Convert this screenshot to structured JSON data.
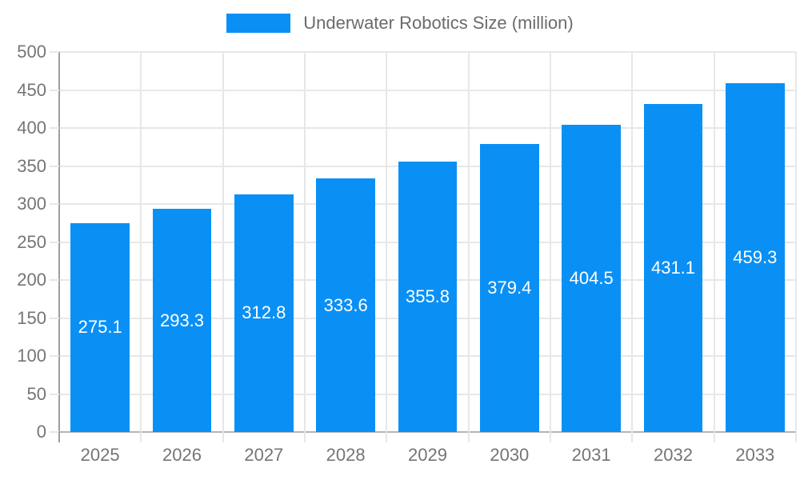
{
  "legend": {
    "label": "Underwater Robotics Size (million)"
  },
  "chart_data": {
    "type": "bar",
    "title": "Underwater Robotics Size (million)",
    "categories": [
      "2025",
      "2026",
      "2027",
      "2028",
      "2029",
      "2030",
      "2031",
      "2032",
      "2033"
    ],
    "series": [
      {
        "name": "Underwater Robotics Size (million)",
        "values": [
          275.1,
          293.3,
          312.8,
          333.6,
          355.8,
          379.4,
          404.5,
          431.1,
          459.3
        ]
      }
    ],
    "xlabel": "",
    "ylabel": "",
    "ylim": [
      0,
      500
    ],
    "ytick_step": 50,
    "grid": true,
    "legend_position": "top",
    "value_label_position": "inside-center",
    "value_label_decimals": 1,
    "bar_width_ratio": 0.72,
    "colors": {
      "bar": "#0a90f5",
      "grid": "#e7e7e7",
      "y_axis_line": "#9e9e9e",
      "x_axis_line": "#b3b3b3",
      "tick_text": "#757575",
      "legend_text": "#6b6b6b",
      "value_label": "#ffffff",
      "background": "#ffffff"
    }
  }
}
